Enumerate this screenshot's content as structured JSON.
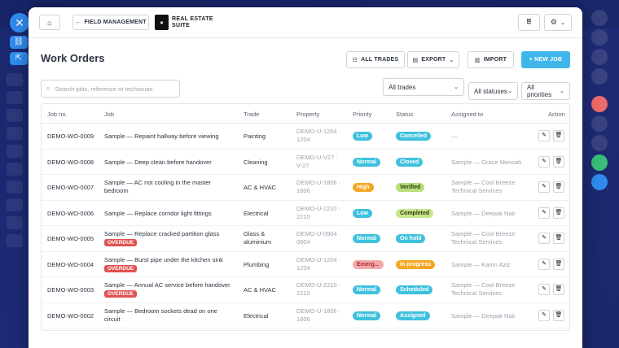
{
  "header": {
    "back_label": "FIELD MANAGEMENT",
    "logo_line1": "REAL ESTATE",
    "logo_line2": "SUITE"
  },
  "page": {
    "title": "Work Orders"
  },
  "toolbar": {
    "all_trades_label": "ALL TRADES",
    "export_label": "EXPORT",
    "import_label": "IMPORT",
    "new_job_label": "+ NEW JOB"
  },
  "filters": {
    "search_placeholder": "Search jobs, reference or technician",
    "trade_selected": "All trades",
    "status_selected": "All statuses",
    "priority_selected": "All priorities"
  },
  "table": {
    "headers": [
      "Job no.",
      "Job",
      "Trade",
      "Property",
      "Priority",
      "Status",
      "Assigned to",
      "Action"
    ],
    "rows": [
      {
        "job_no": "DEMO-WO-0009",
        "job_line1": "Sample — Repaint hallway before viewing",
        "job_line2": "",
        "overdue": "",
        "trade_line1": "Painting",
        "trade_line2": "",
        "prop_line1": "DEMO-U-1204 ·",
        "prop_line2": "1204",
        "priority": "Low",
        "status": "Cancelled",
        "assigned_line1": "—",
        "assigned_line2": ""
      },
      {
        "job_no": "DEMO-WO-0008",
        "job_line1": "Sample — Deep clean before handover",
        "job_line2": "",
        "overdue": "",
        "trade_line1": "Cleaning",
        "trade_line2": "",
        "prop_line1": "DEMO-U-V27 ·",
        "prop_line2": "V-27",
        "priority": "Normal",
        "status": "Closed",
        "assigned_line1": "Sample — Grace Mensah",
        "assigned_line2": ""
      },
      {
        "job_no": "DEMO-WO-0007",
        "job_line1": "Sample — AC not cooling in the master",
        "job_line2": "bedroom",
        "overdue": "",
        "trade_line1": "AC & HVAC",
        "trade_line2": "",
        "prop_line1": "DEMO-U-1806 ·",
        "prop_line2": "1806",
        "priority": "High",
        "status": "Verified",
        "assigned_line1": "Sample — Cool Breeze",
        "assigned_line2": "Technical Services"
      },
      {
        "job_no": "DEMO-WO-0006",
        "job_line1": "Sample — Replace corridor light fittings",
        "job_line2": "",
        "overdue": "",
        "trade_line1": "Electrical",
        "trade_line2": "",
        "prop_line1": "DEMO-U-2210 ·",
        "prop_line2": "2210",
        "priority": "Low",
        "status": "Completed",
        "assigned_line1": "Sample — Deepak Nair",
        "assigned_line2": ""
      },
      {
        "job_no": "DEMO-WO-0005",
        "job_line1": "Sample — Replace cracked partition glass",
        "job_line2": "",
        "overdue": "OVERDUE",
        "trade_line1": "Glass &",
        "trade_line2": "aluminium",
        "prop_line1": "DEMO-U-0904 ·",
        "prop_line2": "0904",
        "priority": "Normal",
        "status": "On hold",
        "assigned_line1": "Sample — Cool Breeze",
        "assigned_line2": "Technical Services"
      },
      {
        "job_no": "DEMO-WO-0004",
        "job_line1": "Sample — Burst pipe under the kitchen sink",
        "job_line2": "",
        "overdue": "OVERDUE",
        "trade_line1": "Plumbing",
        "trade_line2": "",
        "prop_line1": "DEMO-U-1204 ·",
        "prop_line2": "1204",
        "priority": "Emerg...",
        "status": "In progress",
        "assigned_line1": "Sample — Karim Aziz",
        "assigned_line2": ""
      },
      {
        "job_no": "DEMO-WO-0003",
        "job_line1": "Sample — Annual AC service before handover",
        "job_line2": "",
        "overdue": "OVERDUE",
        "trade_line1": "AC & HVAC",
        "trade_line2": "",
        "prop_line1": "DEMO-U-2210 ·",
        "prop_line2": "2210",
        "priority": "Normal",
        "status": "Scheduled",
        "assigned_line1": "Sample — Cool Breeze",
        "assigned_line2": "Technical Services"
      },
      {
        "job_no": "DEMO-WO-0002",
        "job_line1": "Sample — Bedroom sockets dead on one",
        "job_line2": "circuit",
        "overdue": "",
        "trade_line1": "Electrical",
        "trade_line2": "",
        "prop_line1": "DEMO-U-1806 ·",
        "prop_line2": "1806",
        "priority": "Normal",
        "status": "Assigned",
        "assigned_line1": "Sample — Deepak Nair",
        "assigned_line2": ""
      }
    ]
  },
  "colors": {
    "accent": "#3fb6ea",
    "priority": {
      "Low": "#3fc1dd",
      "Normal": "#3fc1dd",
      "High": "#f5a623",
      "Emerg...": "#f3a7a7"
    },
    "status": {
      "Cancelled": "#3fc1dd",
      "Closed": "#3fc1dd",
      "Verified": "#b7e07a",
      "Completed": "#c8e68a",
      "On hold": "#3fc1dd",
      "In progress": "#f5a623",
      "Scheduled": "#3fc1dd",
      "Assigned": "#3fc1dd"
    }
  },
  "icons": {
    "home": "home-icon",
    "back": "arrow-left-icon",
    "grid": "grid-icon",
    "gear": "gear-icon",
    "search": "search-icon",
    "edit": "pencil-icon",
    "delete": "trash-icon"
  }
}
